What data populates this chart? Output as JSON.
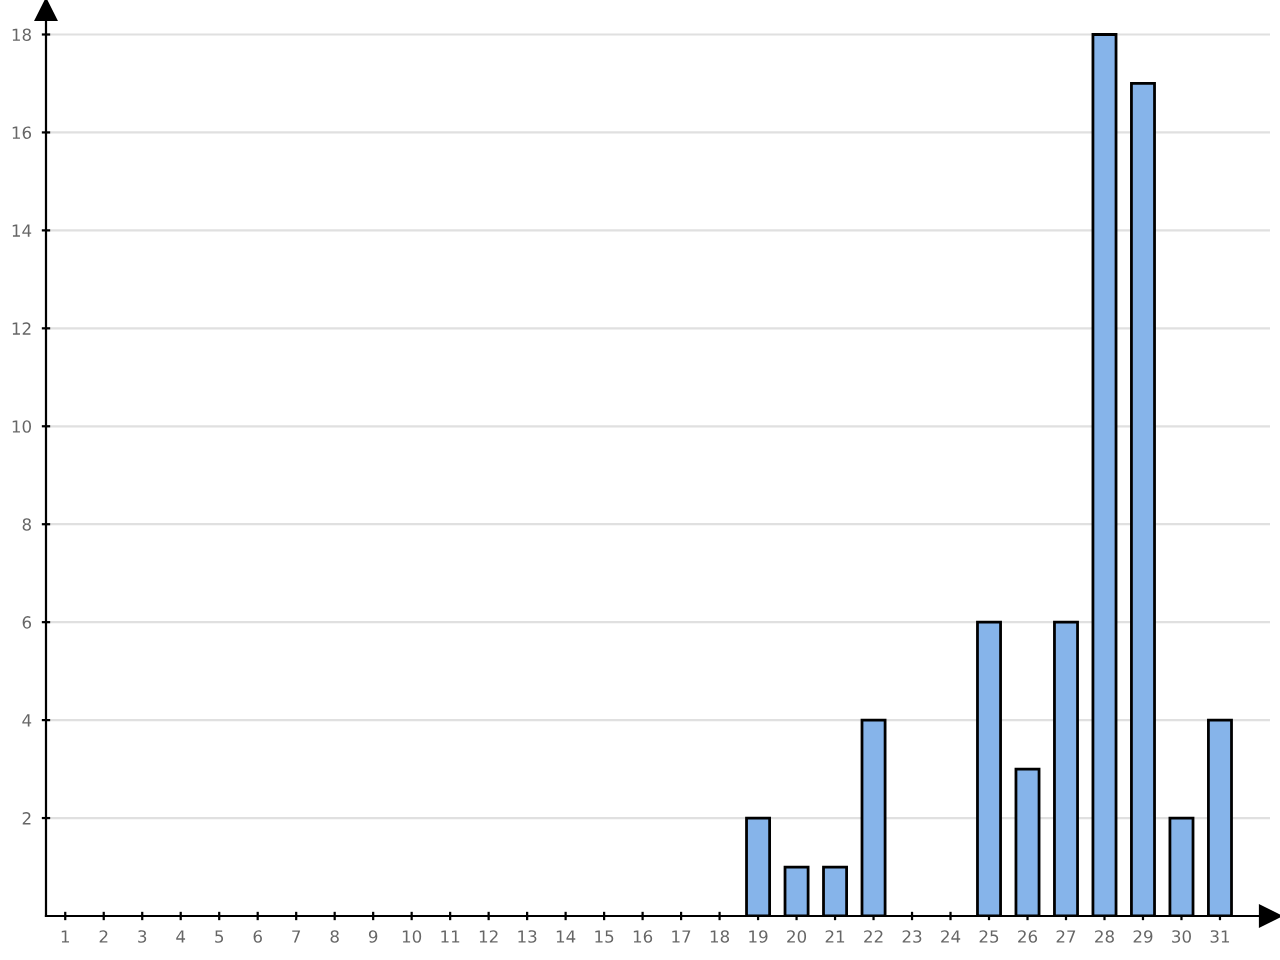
{
  "chart_data": {
    "type": "bar",
    "categories": [
      "1",
      "2",
      "3",
      "4",
      "5",
      "6",
      "7",
      "8",
      "9",
      "10",
      "11",
      "12",
      "13",
      "14",
      "15",
      "16",
      "17",
      "18",
      "19",
      "20",
      "21",
      "22",
      "23",
      "24",
      "25",
      "26",
      "27",
      "28",
      "29",
      "30",
      "31"
    ],
    "values": [
      0,
      0,
      0,
      0,
      0,
      0,
      0,
      0,
      0,
      0,
      0,
      0,
      0,
      0,
      0,
      0,
      0,
      0,
      2,
      1,
      1,
      4,
      0,
      0,
      6,
      3,
      6,
      18,
      17,
      2,
      4
    ],
    "color": "#86b4ea",
    "ylim": [
      0,
      18.5
    ],
    "yticks": [
      2,
      4,
      6,
      8,
      10,
      12,
      14,
      16,
      18
    ],
    "grid": "y",
    "legend": false
  }
}
